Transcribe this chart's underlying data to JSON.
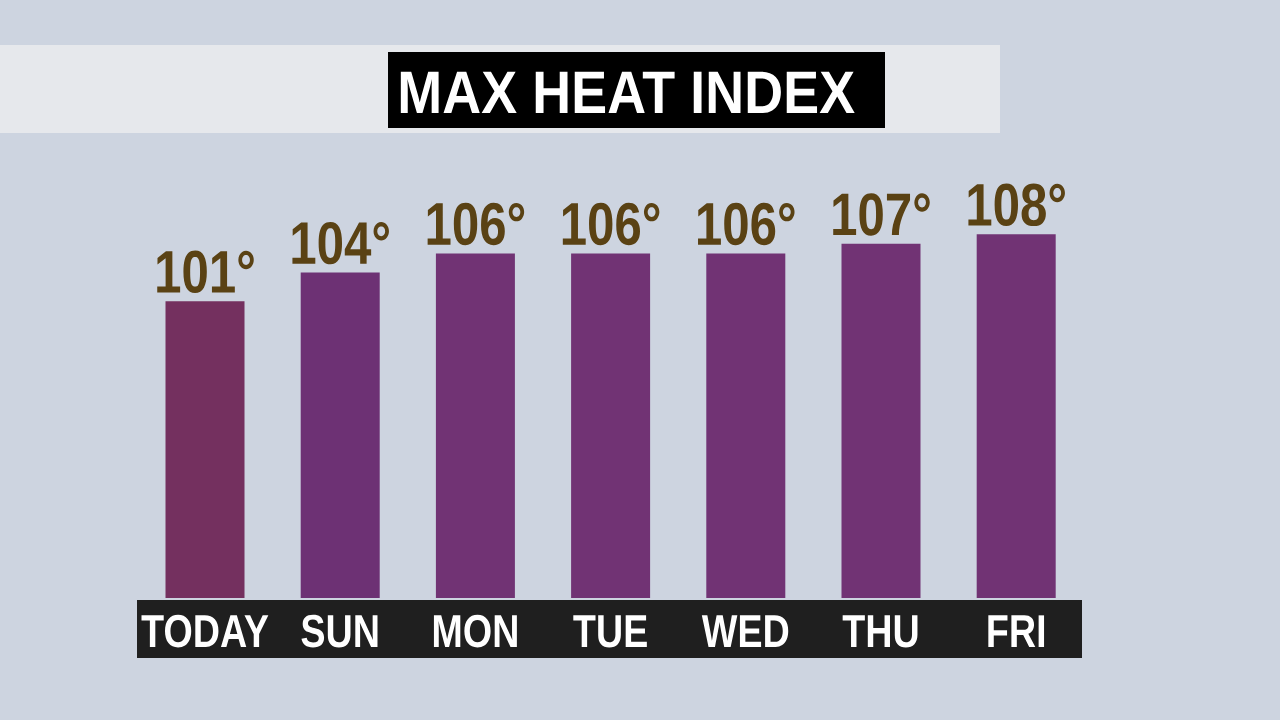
{
  "chart_data": {
    "type": "bar",
    "title": "MAX HEAT INDEX",
    "categories": [
      "TODAY",
      "SUN",
      "MON",
      "TUE",
      "WED",
      "THU",
      "FRI"
    ],
    "values": [
      101,
      104,
      106,
      106,
      106,
      107,
      108
    ],
    "value_labels": [
      "101°",
      "104°",
      "106°",
      "106°",
      "106°",
      "107°",
      "108°"
    ],
    "colors": [
      "#74305f",
      "#6d3174",
      "#713374",
      "#713374",
      "#713374",
      "#713374",
      "#713374"
    ],
    "ylim": [
      70,
      108
    ],
    "tick_labels": "x"
  }
}
